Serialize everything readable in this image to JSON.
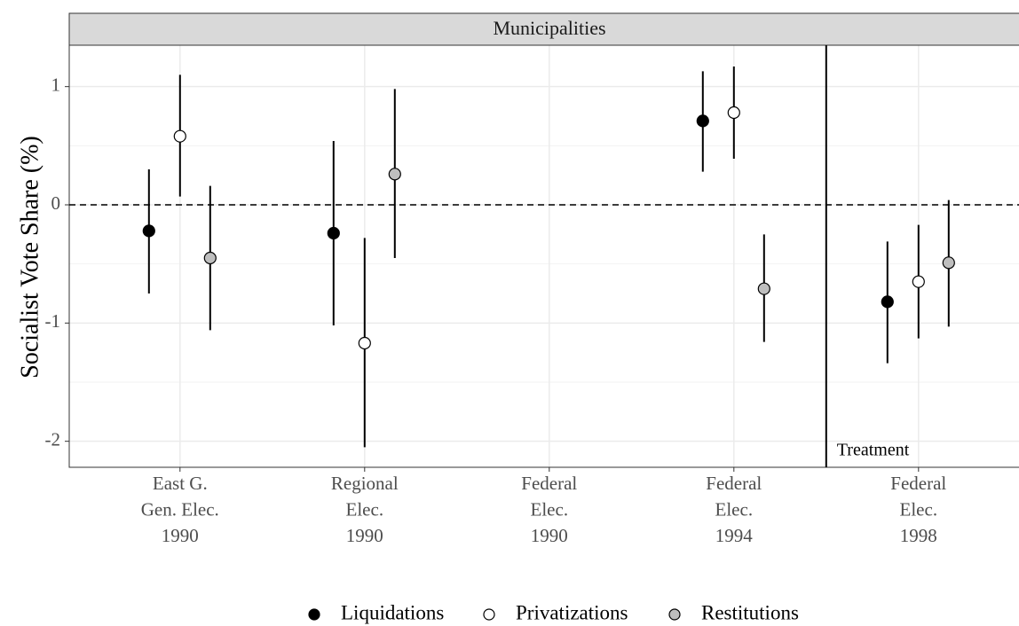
{
  "chart_data": {
    "type": "pointrange",
    "strip_title": "Municipalities",
    "y_label": "Socialist Vote Share (%)",
    "categories": [
      [
        "East G.",
        "Gen. Elec.",
        "1990"
      ],
      [
        "Regional",
        "Elec.",
        "1990"
      ],
      [
        "Federal",
        "Elec.",
        "1990"
      ],
      [
        "Federal",
        "Elec.",
        "1994"
      ],
      [
        "Federal",
        "Elec.",
        "1998"
      ]
    ],
    "series": [
      {
        "name": "Liquidations",
        "color": "#000000",
        "values": [
          -0.22,
          -0.24,
          null,
          0.71,
          -0.82
        ],
        "lower": [
          -0.75,
          -1.02,
          null,
          0.28,
          -1.34
        ],
        "upper": [
          0.3,
          0.54,
          null,
          1.13,
          -0.31
        ]
      },
      {
        "name": "Privatizations",
        "color": "#ffffff",
        "values": [
          0.58,
          -1.17,
          null,
          0.78,
          -0.65
        ],
        "lower": [
          0.07,
          -2.05,
          null,
          0.39,
          -1.13
        ],
        "upper": [
          1.1,
          -0.28,
          null,
          1.17,
          -0.17
        ]
      },
      {
        "name": "Restitutions",
        "color": "#bebebe",
        "values": [
          -0.45,
          0.26,
          null,
          -0.71,
          -0.49
        ],
        "lower": [
          -1.06,
          -0.45,
          null,
          -1.16,
          -1.03
        ],
        "upper": [
          0.16,
          0.98,
          null,
          -0.25,
          0.04
        ]
      }
    ],
    "ylim": [
      -2.22,
      1.35
    ],
    "yticks": [
      -2,
      -1,
      0,
      1
    ],
    "minor_yticks": [
      -1.5,
      -0.5,
      0.5
    ],
    "hline": 0,
    "treatment": {
      "position": 3.5,
      "label": "Treatment"
    },
    "grid": true,
    "legend": "bottom"
  }
}
